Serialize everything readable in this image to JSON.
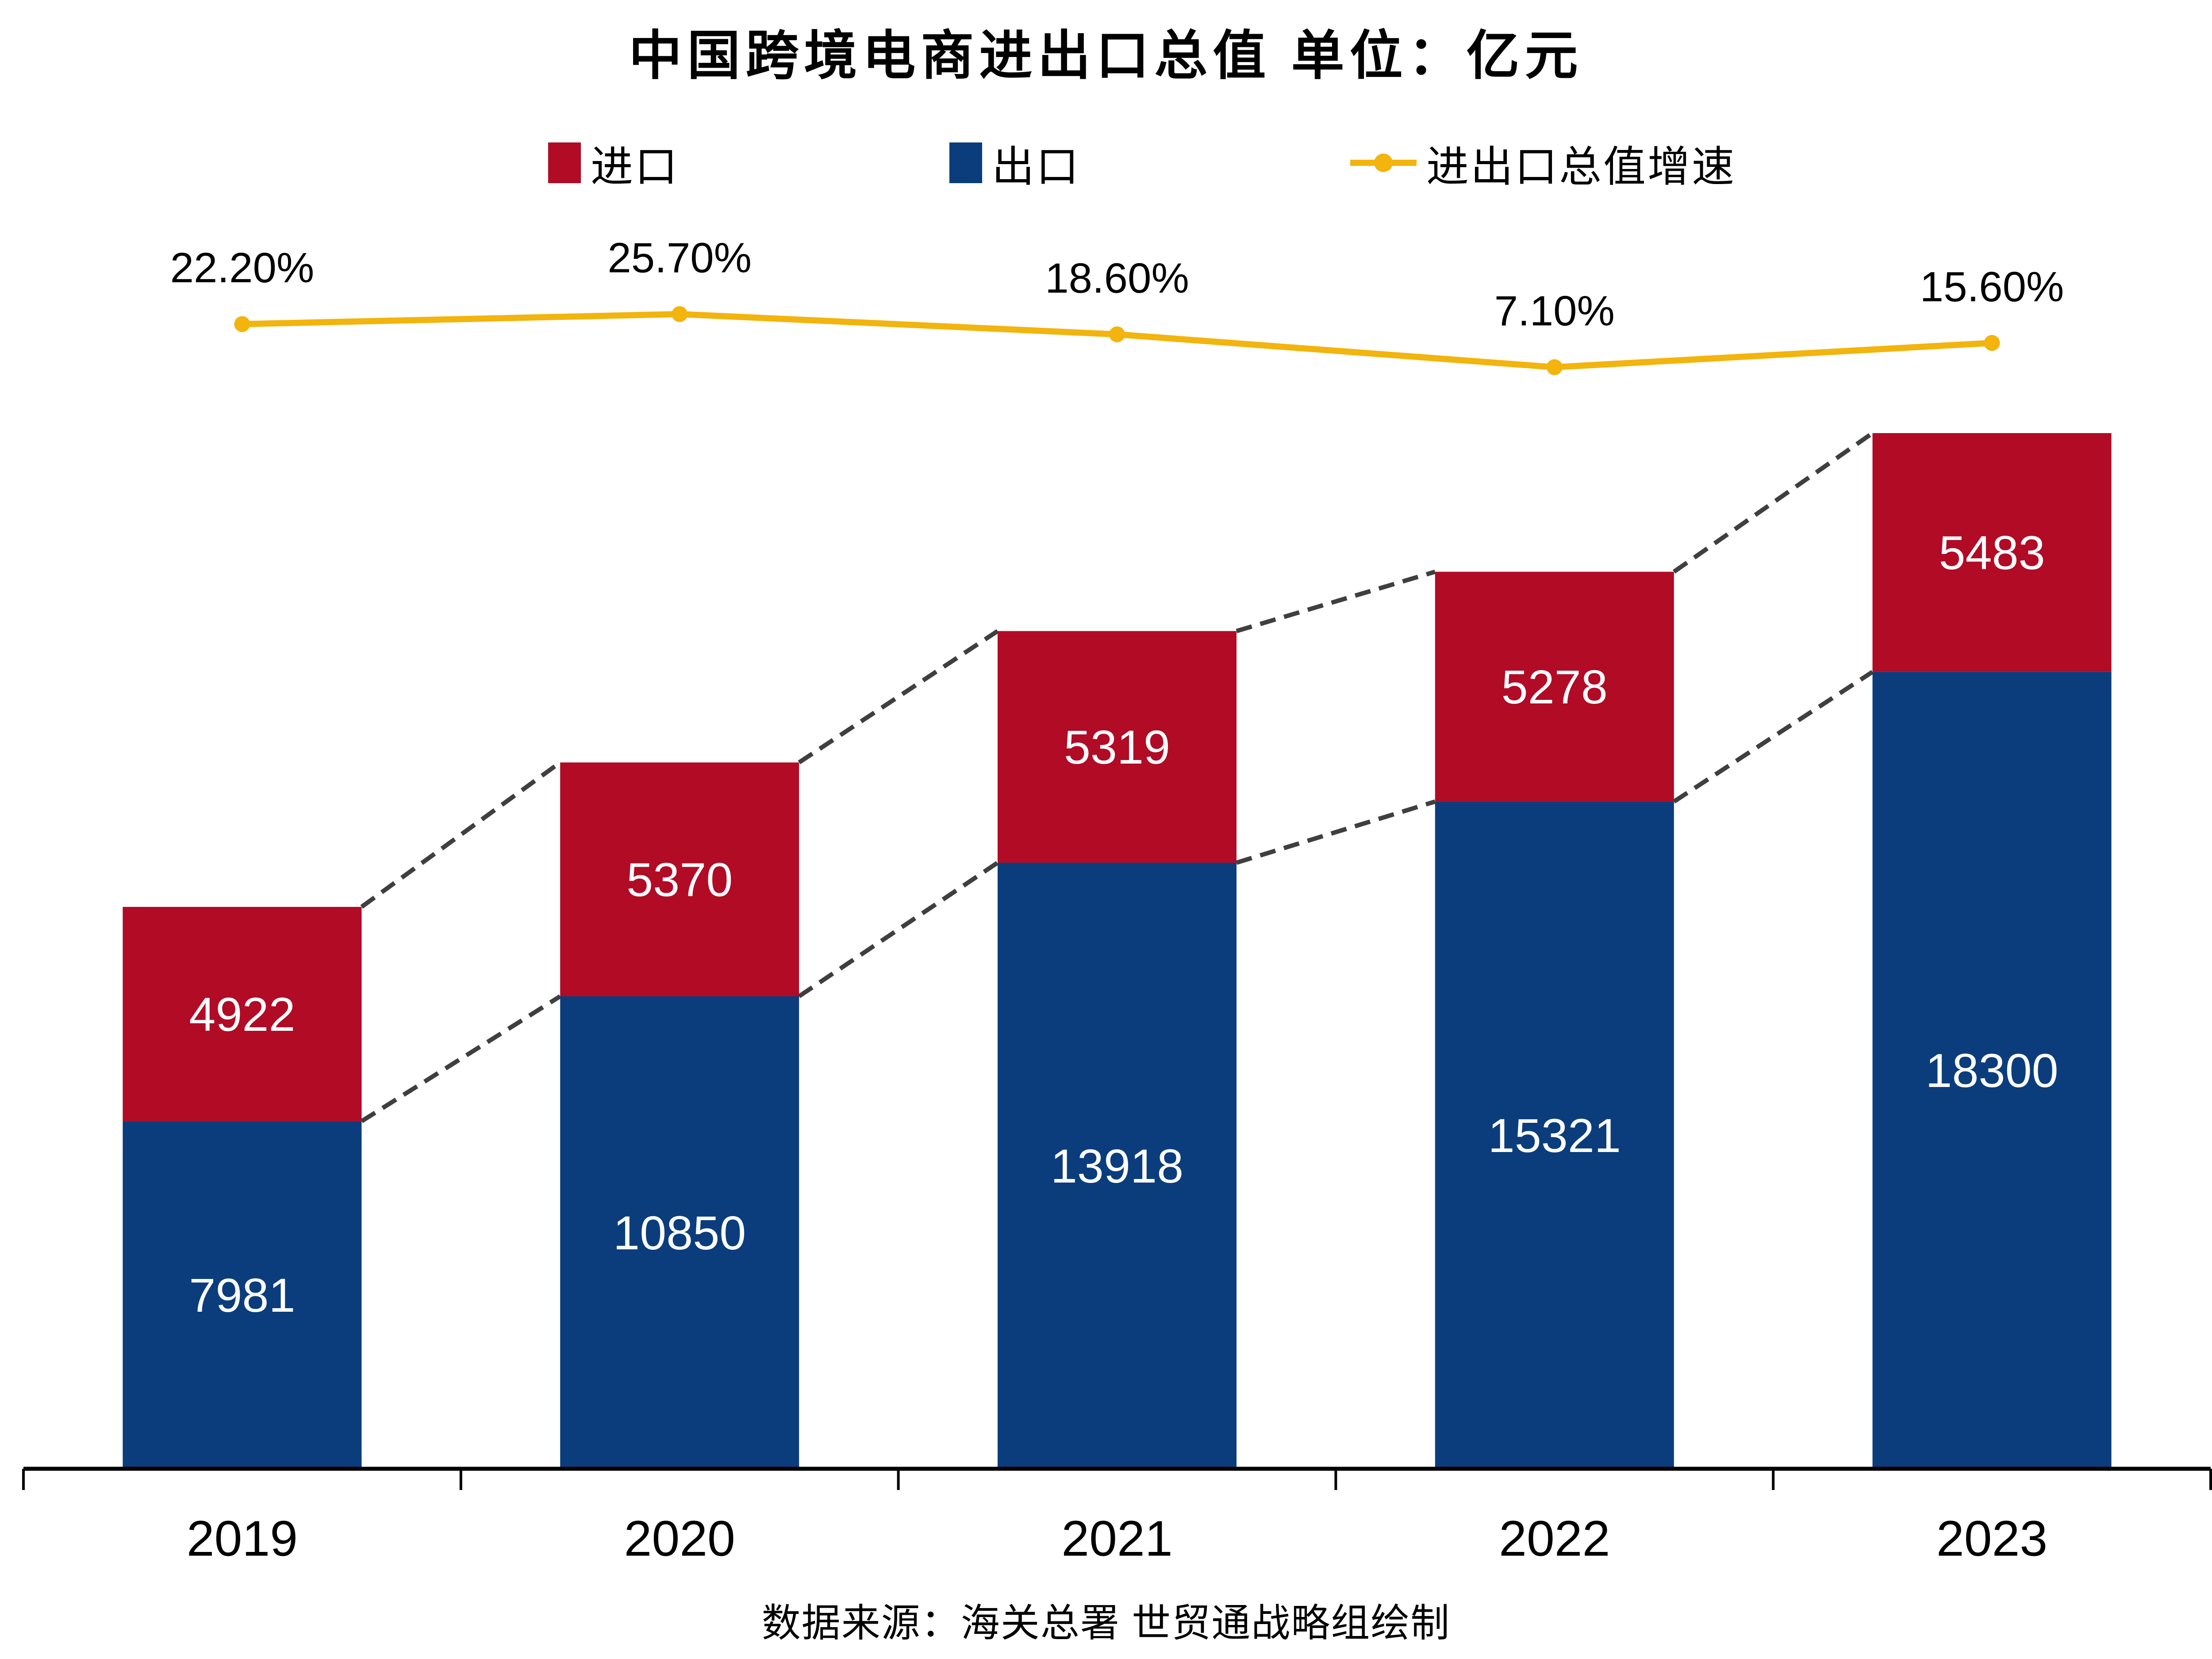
{
  "title": "中国跨境电商进出口总值  单位：亿元",
  "legend": {
    "import_label": "进口",
    "export_label": "出口",
    "growth_label": "进出口总值增速"
  },
  "source_note": "数据来源：海关总署 世贸通战略组绘制",
  "colors": {
    "import_red": "#B10B26",
    "export_blue": "#0B3D7D",
    "growth_yellow": "#F2B40D",
    "connector_gray": "#3F3F3F",
    "axis_black": "#000000",
    "bar_label_white": "#FFFFFF",
    "text_black": "#000000"
  },
  "chart_data": {
    "type": "bar",
    "subtype": "stacked-bars-with-growth-line",
    "title": "中国跨境电商进出口总值",
    "unit": "亿元",
    "categories": [
      "2019",
      "2020",
      "2021",
      "2022",
      "2023"
    ],
    "series": [
      {
        "name": "出口",
        "type": "bar",
        "stack": "total",
        "color": "#0B3D7D",
        "values": [
          7981,
          10850,
          13918,
          15321,
          18300
        ]
      },
      {
        "name": "进口",
        "type": "bar",
        "stack": "total",
        "color": "#B10B26",
        "values": [
          4922,
          5370,
          5319,
          5278,
          5483
        ]
      },
      {
        "name": "进出口总值增速",
        "type": "line",
        "unit": "%",
        "color": "#F2B40D",
        "values": [
          22.2,
          25.7,
          18.6,
          7.1,
          15.6
        ],
        "labels": [
          "22.20%",
          "25.70%",
          "18.60%",
          "7.10%",
          "15.60%"
        ]
      }
    ],
    "value_labels": "inside-segments-white",
    "growth_labels_position": "above-line",
    "connectors": "dashed-lines-between-stack-segment-tops",
    "legend_position": "top",
    "grid": false,
    "y_axis_visible": false,
    "x_axis_visible": true
  }
}
